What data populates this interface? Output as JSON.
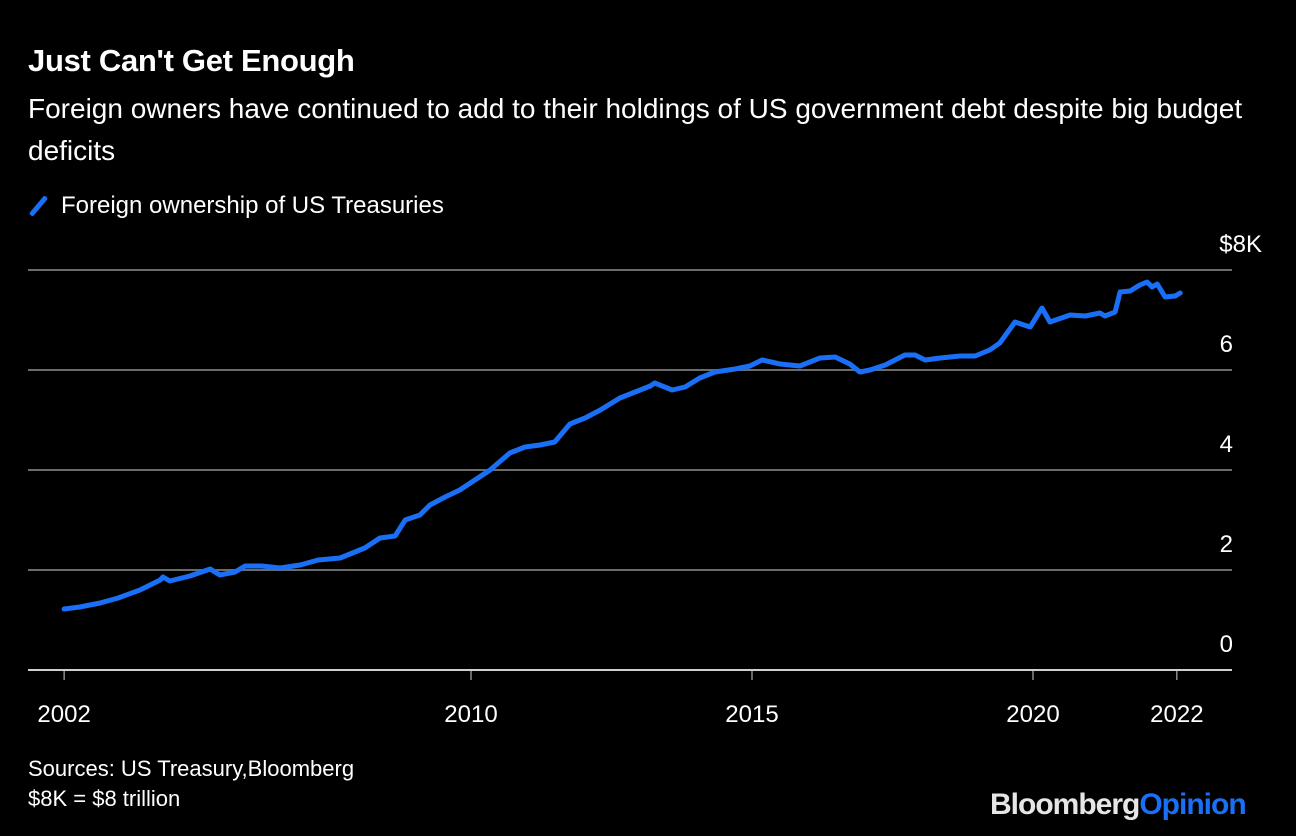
{
  "colors": {
    "background": "#000000",
    "line": "#1a6ff7",
    "grid": "#6b6b6b",
    "text": "#ffffff"
  },
  "chart_data": {
    "type": "line",
    "title": "Just Can't Get Enough",
    "subtitle": "Foreign owners have continued to add to their holdings of US government debt despite big budget deficits",
    "legend_position": "top-left",
    "series": [
      {
        "name": "Foreign ownership of US Treasuries",
        "x": [
          2002.76,
          2003.04,
          2003.4,
          2003.72,
          2004.11,
          2004.47,
          2004.52,
          2004.64,
          2005.0,
          2005.36,
          2005.53,
          2005.8,
          2005.98,
          2006.28,
          2006.6,
          2006.96,
          2007.28,
          2007.67,
          2008.11,
          2008.38,
          2008.65,
          2008.83,
          2009.09,
          2009.27,
          2009.54,
          2009.8,
          2010.07,
          2010.34,
          2010.69,
          2010.96,
          2011.23,
          2011.49,
          2011.76,
          2012.03,
          2012.3,
          2012.65,
          2012.92,
          2013.19,
          2013.27,
          2013.58,
          2013.81,
          2014.07,
          2014.34,
          2014.7,
          2014.96,
          2015.18,
          2015.5,
          2015.85,
          2016.21,
          2016.48,
          2016.74,
          2016.92,
          2017.1,
          2017.37,
          2017.72,
          2017.9,
          2018.08,
          2018.35,
          2018.7,
          2018.97,
          2019.23,
          2019.41,
          2019.68,
          2019.95,
          2020.16,
          2020.3,
          2020.66,
          2020.93,
          2021.19,
          2021.28,
          2021.46,
          2021.55,
          2021.73,
          2021.9,
          2022.03,
          2022.12,
          2022.21,
          2022.35,
          2022.53,
          2022.62
        ],
        "values": [
          1.22,
          1.26,
          1.34,
          1.44,
          1.6,
          1.8,
          1.86,
          1.78,
          1.88,
          2.02,
          1.9,
          1.96,
          2.08,
          2.08,
          2.04,
          2.1,
          2.2,
          2.24,
          2.44,
          2.64,
          2.68,
          3.0,
          3.1,
          3.3,
          3.46,
          3.6,
          3.8,
          4.0,
          4.34,
          4.46,
          4.5,
          4.56,
          4.92,
          5.04,
          5.2,
          5.44,
          5.56,
          5.68,
          5.74,
          5.6,
          5.66,
          5.84,
          5.96,
          6.02,
          6.08,
          6.2,
          6.12,
          6.08,
          6.24,
          6.26,
          6.12,
          5.96,
          6.0,
          6.1,
          6.3,
          6.3,
          6.2,
          6.24,
          6.28,
          6.28,
          6.4,
          6.54,
          6.96,
          6.86,
          7.24,
          6.96,
          7.1,
          7.08,
          7.14,
          7.08,
          7.16,
          7.56,
          7.58,
          7.7,
          7.76,
          7.66,
          7.72,
          7.46,
          7.48,
          7.54
        ]
      }
    ],
    "ylim": [
      0,
      8
    ],
    "y_ticks": [
      {
        "value": 8,
        "label": "$8K"
      },
      {
        "value": 6,
        "label": "6"
      },
      {
        "value": 4,
        "label": "4"
      },
      {
        "value": 2,
        "label": "2"
      },
      {
        "value": 0,
        "label": "0"
      }
    ],
    "x_ticks": [
      {
        "value": 2002.76,
        "label": "2002"
      },
      {
        "value": 2010,
        "label": "2010"
      },
      {
        "value": 2015,
        "label": "2015"
      },
      {
        "value": 2020,
        "label": "2020"
      },
      {
        "value": 2022.56,
        "label": "2022"
      }
    ],
    "grid": true,
    "xlabel": "",
    "ylabel": ""
  },
  "footer": {
    "sources": "Sources: US Treasury,Bloomberg",
    "note": "$8K = $8 trillion"
  },
  "logo": {
    "brand": "Bloomberg",
    "section": "Opinion"
  }
}
